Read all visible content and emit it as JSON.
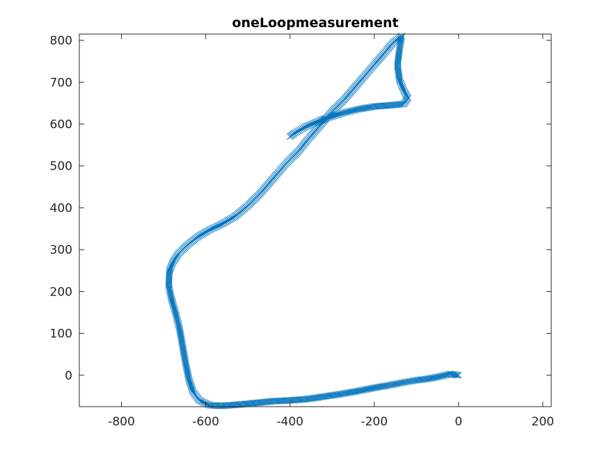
{
  "chart_data": {
    "type": "scatter",
    "title": "oneLoopmeasurement",
    "xlabel": "",
    "ylabel": "",
    "xlim": [
      -900,
      220
    ],
    "ylim": [
      -75,
      815
    ],
    "xticks": [
      -800,
      -600,
      -400,
      -200,
      0,
      200
    ],
    "yticks": [
      0,
      100,
      200,
      300,
      400,
      500,
      600,
      700,
      800
    ],
    "grid": false,
    "legend": "none",
    "marker": "x",
    "color": "#0072BD",
    "series": [
      {
        "values": [
          [
            0,
            0
          ],
          [
            -20,
            3
          ],
          [
            -45,
            -3
          ],
          [
            -70,
            -8
          ],
          [
            -100,
            -12
          ],
          [
            -130,
            -17
          ],
          [
            -160,
            -23
          ],
          [
            -200,
            -30
          ],
          [
            -240,
            -38
          ],
          [
            -280,
            -45
          ],
          [
            -320,
            -51
          ],
          [
            -360,
            -57
          ],
          [
            -400,
            -60
          ],
          [
            -440,
            -62
          ],
          [
            -480,
            -66
          ],
          [
            -520,
            -70
          ],
          [
            -560,
            -73
          ],
          [
            -590,
            -72
          ],
          [
            -615,
            -60
          ],
          [
            -630,
            -40
          ],
          [
            -640,
            -10
          ],
          [
            -648,
            30
          ],
          [
            -655,
            70
          ],
          [
            -662,
            110
          ],
          [
            -672,
            150
          ],
          [
            -682,
            185
          ],
          [
            -688,
            215
          ],
          [
            -686,
            250
          ],
          [
            -678,
            270
          ],
          [
            -665,
            290
          ],
          [
            -645,
            310
          ],
          [
            -620,
            330
          ],
          [
            -590,
            348
          ],
          [
            -560,
            362
          ],
          [
            -530,
            380
          ],
          [
            -500,
            405
          ],
          [
            -470,
            435
          ],
          [
            -440,
            470
          ],
          [
            -410,
            505
          ],
          [
            -380,
            535
          ],
          [
            -360,
            560
          ],
          [
            -330,
            595
          ],
          [
            -300,
            630
          ],
          [
            -270,
            660
          ],
          [
            -240,
            695
          ],
          [
            -210,
            730
          ],
          [
            -180,
            765
          ],
          [
            -155,
            795
          ],
          [
            -135,
            810
          ],
          [
            -140,
            780
          ],
          [
            -145,
            740
          ],
          [
            -140,
            705
          ],
          [
            -130,
            680
          ],
          [
            -120,
            662
          ],
          [
            -130,
            648
          ],
          [
            -160,
            645
          ],
          [
            -200,
            642
          ],
          [
            -240,
            635
          ],
          [
            -280,
            625
          ],
          [
            -320,
            612
          ],
          [
            -360,
            595
          ],
          [
            -390,
            578
          ],
          [
            -400,
            570
          ]
        ]
      }
    ]
  }
}
